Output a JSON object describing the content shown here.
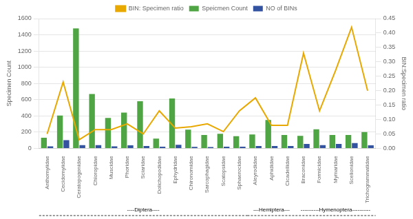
{
  "chart_data": {
    "type": "bar",
    "categories": [
      "Anthomyiidae",
      "Cecidomyiidae",
      "Ceratopogonidae",
      "Chloropidae",
      "Muscidae",
      "Phoridae",
      "Sciaridae",
      "Dolichopodidae",
      "Ephydridae",
      "Chironomidae",
      "Sarcophagidae",
      "Scatopsidae",
      "Sphaerocidae",
      "Aleyrodidae",
      "Aphididae",
      "Cicadellidae",
      "Braconidae",
      "Formicidae",
      "Mymaridae",
      "Scelionidae",
      "Trichogrammatidae"
    ],
    "series": [
      {
        "name": "Speicmen Count",
        "color": "#4fa543",
        "values": [
          130,
          405,
          1480,
          670,
          375,
          440,
          580,
          120,
          615,
          230,
          165,
          180,
          150,
          170,
          350,
          165,
          155,
          235,
          165,
          165,
          200
        ]
      },
      {
        "name": "NO of BINs",
        "color": "#3352a0",
        "values": [
          25,
          100,
          40,
          40,
          25,
          38,
          28,
          20,
          43,
          18,
          15,
          20,
          20,
          28,
          28,
          28,
          55,
          40,
          55,
          65,
          38
        ]
      },
      {
        "name": "BIN: Specimen ratio",
        "color": "#e8a800",
        "type": "line",
        "axis": "y2",
        "values": [
          0.05,
          0.23,
          0.03,
          0.065,
          0.065,
          0.085,
          0.05,
          0.13,
          0.07,
          0.075,
          0.085,
          0.058,
          0.13,
          0.175,
          0.08,
          0.08,
          0.33,
          0.13,
          0.27,
          0.42,
          0.2
        ]
      }
    ],
    "y_label": "Specimen Count",
    "y2_label": "BIN:Specimen ratio",
    "ylim": [
      0,
      1600
    ],
    "yticks": [
      0,
      200,
      400,
      600,
      800,
      1000,
      1200,
      1400,
      1600
    ],
    "y2lim": [
      0,
      0.45
    ],
    "y2ticks": [
      {
        "value": 0,
        "label": "0.00"
      },
      0.05,
      {
        "value": 0.1,
        "label": "0.10"
      },
      0.15,
      {
        "value": 0.2,
        "label": "0.20"
      },
      0.25,
      {
        "value": 0.3,
        "label": "0.30"
      },
      0.35,
      {
        "value": 0.4,
        "label": "0.40"
      },
      0.45
    ],
    "grid": true,
    "legend": "top",
    "annotations": [
      {
        "label": "----Diptera----",
        "from": "Anthomyiidae",
        "to": "Sphaerocidae"
      },
      {
        "label": "---Hemiptera---",
        "from": "Aleyrodidae",
        "to": "Cicadellidae"
      },
      {
        "label": "----------Hymenoptera----------",
        "from": "Braconidae",
        "to": "Trichogrammatidae"
      }
    ]
  }
}
